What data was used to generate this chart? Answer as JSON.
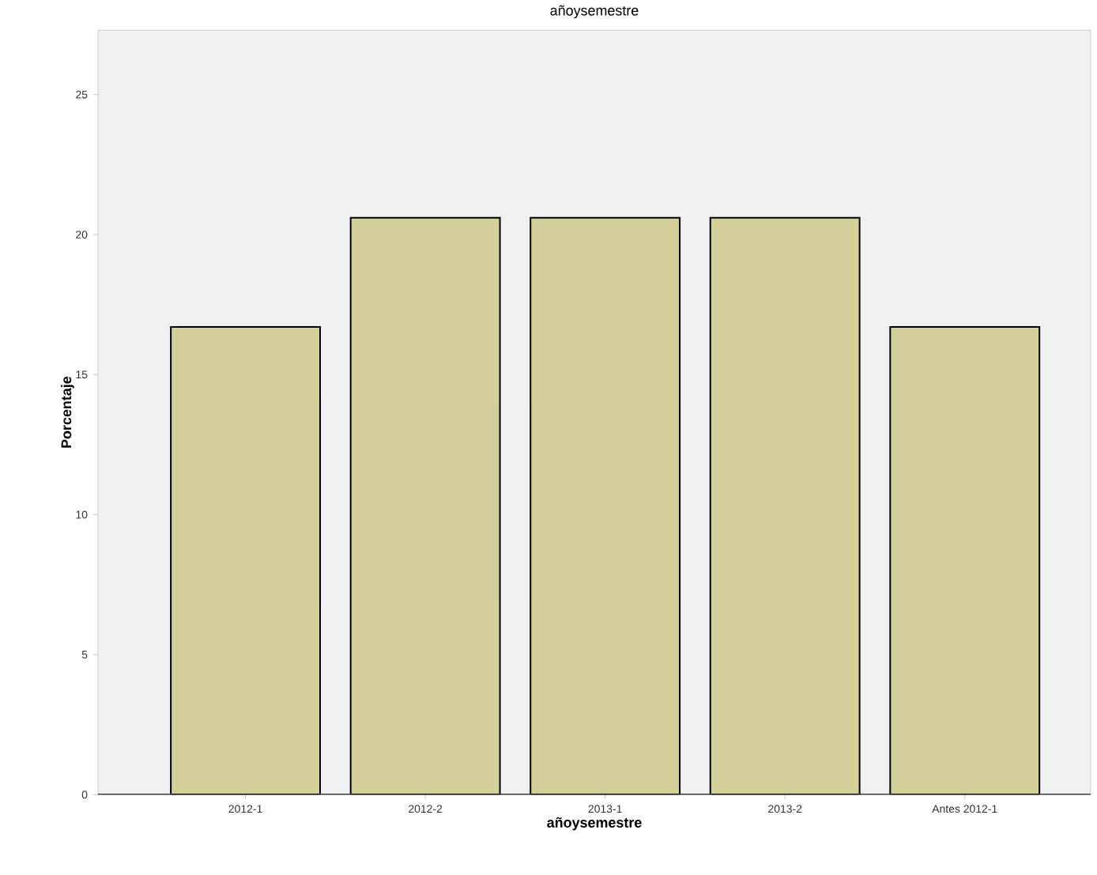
{
  "chart_data": {
    "type": "bar",
    "title": "añoysemestre",
    "xlabel": "añoysemestre",
    "ylabel": "Porcentaje",
    "categories": [
      "2012-1",
      "2012-2",
      "2013-1",
      "2013-2",
      "Antes 2012-1"
    ],
    "values": [
      16.7,
      20.6,
      20.6,
      20.6,
      16.7
    ],
    "color": "#d3cf98",
    "ylim": [
      0,
      27.3
    ],
    "yticks": [
      0,
      5,
      10,
      15,
      20,
      25
    ],
    "grid": false
  }
}
